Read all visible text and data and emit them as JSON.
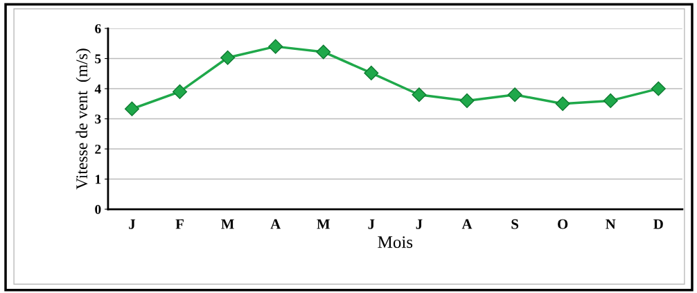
{
  "chart_data": {
    "type": "line",
    "xlabel": "Mois",
    "ylabel": "Vitesse de vent  (m/s)",
    "categories": [
      "J",
      "F",
      "M",
      "A",
      "M",
      "J",
      "J",
      "A",
      "S",
      "O",
      "N",
      "D"
    ],
    "series": [
      {
        "color": "#1fa84a",
        "values": [
          3.33,
          3.9,
          5.03,
          5.4,
          5.22,
          4.52,
          3.8,
          3.6,
          3.8,
          3.5,
          3.6,
          4.0
        ]
      }
    ],
    "ylim": [
      0,
      6
    ],
    "yticks": [
      0,
      1,
      2,
      3,
      4,
      5,
      6
    ],
    "grid": "y",
    "marker": "diamond",
    "line_style": "solid",
    "legend": false
  }
}
